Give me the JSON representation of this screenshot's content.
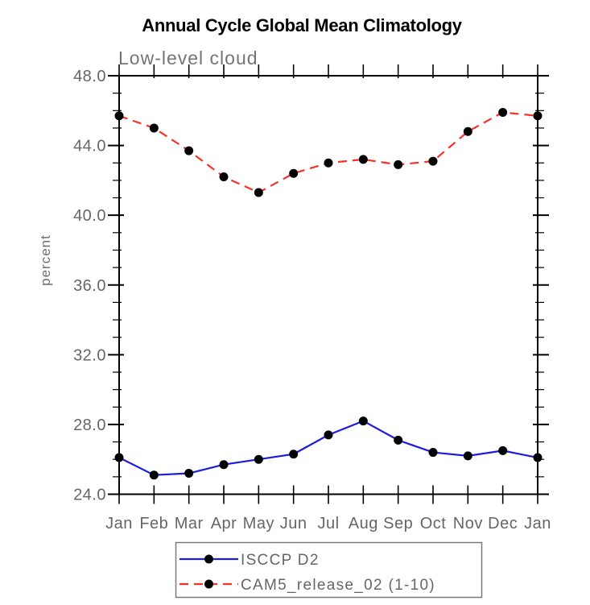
{
  "chart_data": {
    "type": "line",
    "title": "Annual Cycle Global Mean Climatology",
    "subtitle": "Low-level cloud",
    "xlabel": "",
    "ylabel": "percent",
    "categories": [
      "Jan",
      "Feb",
      "Mar",
      "Apr",
      "May",
      "Jun",
      "Jul",
      "Aug",
      "Sep",
      "Oct",
      "Nov",
      "Dec",
      "Jan"
    ],
    "ylim": [
      24.0,
      48.0
    ],
    "yticks": [
      24.0,
      28.0,
      32.0,
      36.0,
      40.0,
      44.0,
      48.0
    ],
    "ytick_labels": [
      "24.0",
      "28.0",
      "32.0",
      "36.0",
      "40.0",
      "44.0",
      "48.0"
    ],
    "minor_ytick_step": 1.0,
    "grid": false,
    "legend_position": "bottom-center-boxed",
    "axis_color": "#000000",
    "text_color": "#666666",
    "legend_border_color": "#7a7a7a",
    "series": [
      {
        "name": "ISCCP D2",
        "color": "#1c1ce0",
        "line_style": "solid",
        "marker": "filled-circle",
        "marker_color": "#000000",
        "values": [
          26.1,
          25.1,
          25.2,
          25.7,
          26.0,
          26.3,
          27.4,
          28.2,
          27.1,
          26.4,
          26.2,
          26.5,
          26.1
        ]
      },
      {
        "name": "CAM5_release_02 (1-10)",
        "color": "#f5312a",
        "line_style": "dashed",
        "marker": "filled-circle",
        "marker_color": "#000000",
        "values": [
          45.7,
          45.0,
          43.7,
          42.2,
          41.3,
          42.4,
          43.0,
          43.2,
          42.9,
          43.1,
          44.8,
          45.9,
          45.7
        ]
      }
    ]
  }
}
